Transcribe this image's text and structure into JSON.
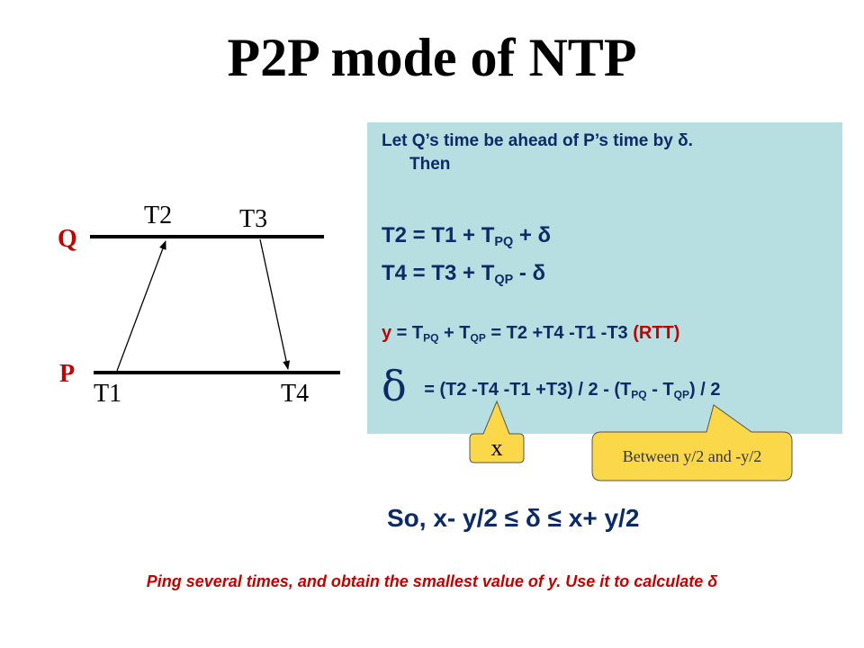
{
  "title": "P2P mode of NTP",
  "diagram": {
    "q_label": "Q",
    "p_label": "P",
    "t1": "T1",
    "t2": "T2",
    "t3": "T3",
    "t4": "T4"
  },
  "box": {
    "intro_line1": "Let Q’s time be ahead of P’s time by δ.",
    "intro_line2": "Then",
    "eq1": {
      "lhs": "T2 = T1 + T",
      "sub": "PQ",
      "rhs": " + δ"
    },
    "eq2": {
      "lhs": "T4 = T3 + T",
      "sub": "QP",
      "rhs": " - δ"
    },
    "eq3": {
      "y": "y",
      "a": " = T",
      "sub1": "PQ",
      "b": " + T",
      "sub2": "QP",
      "c": " = T2 +T4 -T1 -T3 ",
      "rtt": "(RTT)"
    },
    "eq4": {
      "delta": "δ",
      "a": " = (T2 -T4 -T1 +T3) / 2 - (T",
      "sub1": "PQ",
      "b": " - T",
      "sub2": "QP",
      "c": ") / 2"
    }
  },
  "callouts": {
    "x_label": "x",
    "range_label": "Between y/2 and -y/2",
    "fill_color": "#fbd84a"
  },
  "conclusion": "So, x- y/2 ≤ δ ≤ x+ y/2",
  "footer": "Ping several times, and obtain the smallest value of y. Use it to calculate δ"
}
